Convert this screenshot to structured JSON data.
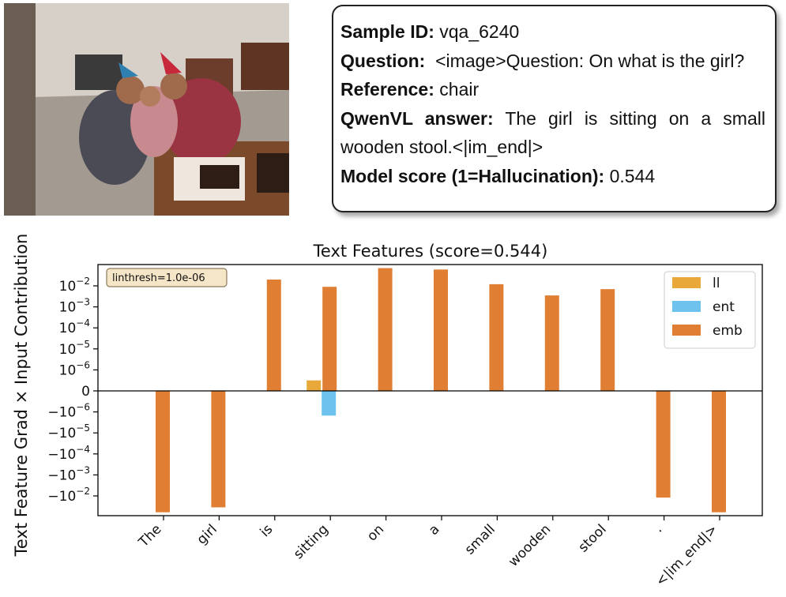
{
  "info": {
    "sample_label": "Sample ID:",
    "sample_value": "vqa_6240",
    "question_label": "Question:",
    "question_value": "<image>Question: On what is the girl?",
    "reference_label": "Reference:",
    "reference_value": "chair",
    "answer_label": "QwenVL answer:",
    "answer_value": "The girl is sitting on a small wooden stool.<|im_end|>",
    "score_label": "Model score (1=Hallucination):",
    "score_value": "0.544"
  },
  "colors": {
    "ll": "#e8a93a",
    "ent": "#6ec3ee",
    "emb": "#e07f33"
  },
  "chart_data": {
    "type": "bar",
    "title": "Text Features (score=0.544)",
    "ylabel": "Text Feature Grad × Input Contribution",
    "yscale": "symlog",
    "linthresh_label": "linthresh=1.0e-06",
    "legend_position": "top-right",
    "categories": [
      "The",
      "girl",
      "is",
      "sitting",
      "on",
      "a",
      "small",
      "wooden",
      "stool",
      ".",
      "<|im_end|>"
    ],
    "y_ticks": [
      "10^-2",
      "10^-3",
      "10^-4",
      "10^-5",
      "10^-6",
      "0",
      "−10^-6",
      "−10^-5",
      "−10^-4",
      "−10^-3",
      "−10^-2"
    ],
    "series": [
      {
        "name": "ll",
        "values": [
          0,
          0,
          0,
          5e-07,
          0,
          0,
          0,
          0,
          0,
          0,
          0
        ]
      },
      {
        "name": "ent",
        "values": [
          0,
          0,
          0,
          -1.5e-06,
          0,
          0,
          0,
          0,
          0,
          0,
          0
        ]
      },
      {
        "name": "emb",
        "values": [
          -0.06,
          -0.035,
          0.02,
          0.009,
          0.07,
          0.06,
          0.012,
          0.0035,
          0.007,
          -0.012,
          -0.06
        ]
      }
    ]
  }
}
